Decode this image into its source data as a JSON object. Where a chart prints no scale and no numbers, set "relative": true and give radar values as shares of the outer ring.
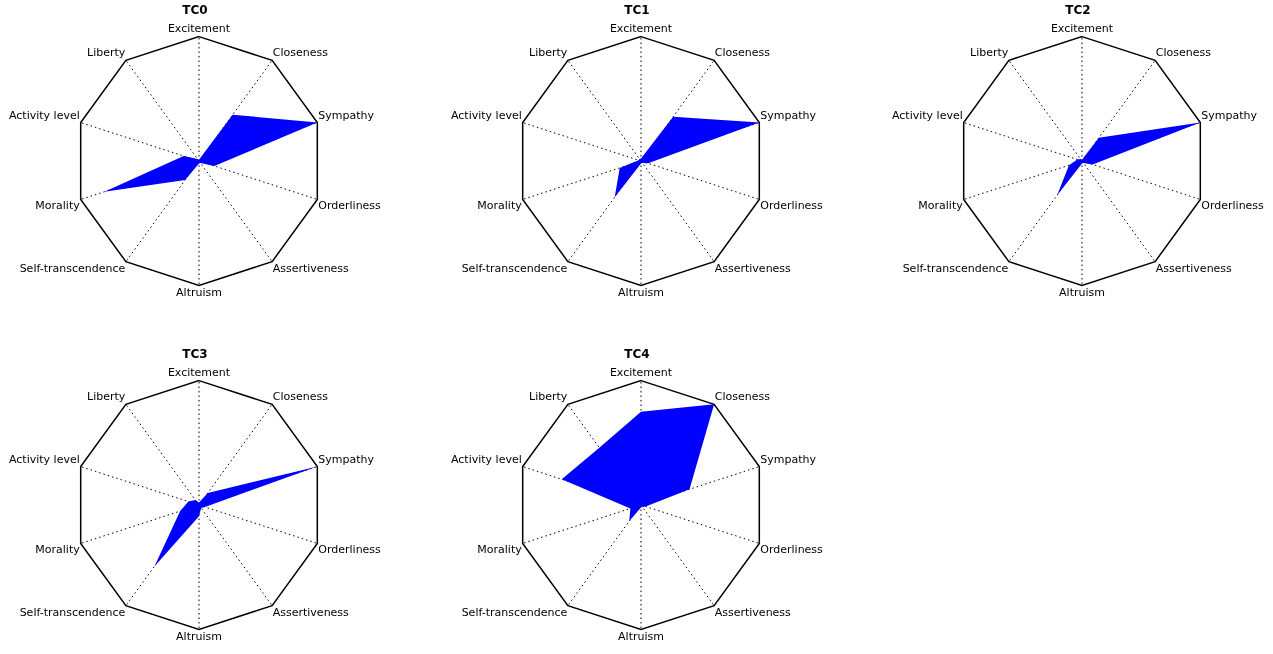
{
  "chart_data": [
    {
      "type": "radar",
      "title": "TC0",
      "categories": [
        "Excitement",
        "Closeness",
        "Sympathy",
        "Orderliness",
        "Assertiveness",
        "Altruism",
        "Self-transcendence",
        "Morality",
        "Activity level",
        "Liberty"
      ],
      "relative": true,
      "grid": true,
      "series": [
        {
          "color": "#0000ff",
          "values": [
            0.01,
            0.46,
            1,
            0.13,
            0.02,
            0.02,
            0.19,
            0.8,
            0.13,
            0.02
          ]
        }
      ]
    },
    {
      "type": "radar",
      "title": "TC1",
      "categories": [
        "Excitement",
        "Closeness",
        "Sympathy",
        "Orderliness",
        "Assertiveness",
        "Altruism",
        "Self-transcendence",
        "Morality",
        "Activity level",
        "Liberty"
      ],
      "relative": true,
      "grid": true,
      "series": [
        {
          "color": "#0000ff",
          "values": [
            0.02,
            0.44,
            1,
            0.06,
            0.02,
            0.02,
            0.36,
            0.18,
            0.02,
            0.02
          ]
        }
      ]
    },
    {
      "type": "radar",
      "title": "TC2",
      "categories": [
        "Excitement",
        "Closeness",
        "Sympathy",
        "Orderliness",
        "Assertiveness",
        "Altruism",
        "Self-transcendence",
        "Morality",
        "Activity level",
        "Liberty"
      ],
      "relative": true,
      "grid": true,
      "series": [
        {
          "color": "#0000ff",
          "values": [
            0.01,
            0.23,
            1,
            0.09,
            0.02,
            0.02,
            0.34,
            0.11,
            0.04,
            0.02
          ]
        }
      ]
    },
    {
      "type": "radar",
      "title": "TC3",
      "categories": [
        "Excitement",
        "Closeness",
        "Sympathy",
        "Orderliness",
        "Assertiveness",
        "Altruism",
        "Self-transcendence",
        "Morality",
        "Activity level",
        "Liberty"
      ],
      "relative": true,
      "grid": true,
      "series": [
        {
          "color": "#0000ff",
          "values": [
            0.02,
            0.12,
            1,
            0.05,
            0.03,
            0.09,
            0.61,
            0.16,
            0.09,
            0.05
          ]
        }
      ]
    },
    {
      "type": "radar",
      "title": "TC4",
      "categories": [
        "Excitement",
        "Closeness",
        "Sympathy",
        "Orderliness",
        "Assertiveness",
        "Altruism",
        "Self-transcendence",
        "Morality",
        "Activity level",
        "Liberty"
      ],
      "relative": true,
      "grid": true,
      "series": [
        {
          "color": "#0000ff",
          "values": [
            0.75,
            1,
            0.41,
            0.04,
            0.02,
            0.02,
            0.16,
            0.09,
            0.67,
            0.57
          ]
        }
      ]
    }
  ]
}
